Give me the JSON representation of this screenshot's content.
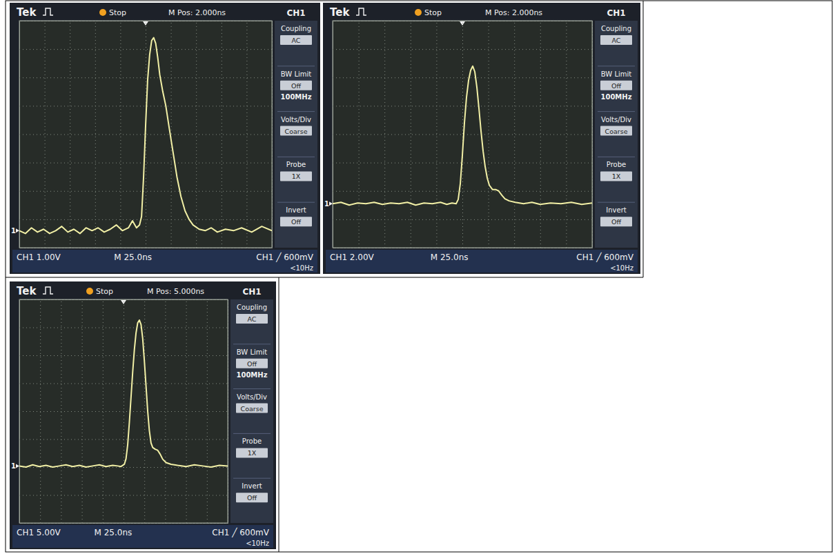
{
  "chart_data": [
    {
      "type": "line",
      "color": "#f2f0a6",
      "grid": true,
      "tick_labels": false,
      "annotations": [
        "Tek",
        "Stop",
        "M Pos: 2.000ns",
        "CH1",
        "Coupling",
        "AC",
        "BW Limit",
        "Off",
        "100MHz",
        "Volts/Div",
        "Coarse",
        "Probe",
        "1X",
        "Invert",
        "Off",
        "CH1 1.00V",
        "M 25.0ns",
        "CH1 ╱ 600mV",
        "<10Hz",
        "1"
      ],
      "xlim": [
        0,
        250
      ],
      "xticks": [
        0,
        25,
        50,
        75,
        100,
        125,
        150,
        175,
        200,
        225,
        250
      ],
      "ylim": [
        -0.5,
        7.5
      ],
      "yticks": [
        -0.5,
        0.5,
        1.5,
        2.5,
        3.5,
        4.5,
        5.5,
        6.5,
        7.5
      ],
      "x": [
        0,
        6,
        12,
        18,
        24,
        30,
        36,
        42,
        48,
        54,
        60,
        66,
        72,
        78,
        84,
        90,
        96,
        102,
        108,
        112,
        116,
        119,
        121,
        123,
        125,
        127,
        129,
        131,
        133,
        135,
        137,
        139,
        142,
        145,
        148,
        152,
        156,
        160,
        164,
        168,
        172,
        178,
        184,
        190,
        196,
        204,
        212,
        220,
        230,
        240,
        250
      ],
      "values": [
        0.1,
        0,
        0.2,
        0.05,
        0.15,
        0,
        0.1,
        0.25,
        0.05,
        0.15,
        0,
        0.2,
        0.1,
        0.2,
        0.05,
        0.15,
        0.3,
        0.1,
        0.2,
        0.45,
        0.2,
        0.3,
        0.6,
        2.0,
        3.8,
        5.4,
        6.3,
        6.8,
        6.9,
        6.7,
        6.2,
        5.6,
        5.0,
        4.5,
        3.8,
        2.9,
        2.0,
        1.3,
        0.8,
        0.5,
        0.3,
        0.15,
        0.1,
        0.2,
        0.05,
        0.15,
        0.1,
        0.2,
        0.05,
        0.25,
        0.1
      ]
    },
    {
      "type": "line",
      "color": "#f2f0a6",
      "grid": true,
      "tick_labels": false,
      "annotations": [
        "Tek",
        "Stop",
        "M Pos: 2.000ns",
        "CH1",
        "Coupling",
        "AC",
        "BW Limit",
        "Off",
        "100MHz",
        "Volts/Div",
        "Coarse",
        "Probe",
        "1X",
        "Invert",
        "Off",
        "CH1 2.00V",
        "M 25.0ns",
        "CH1 ╱ 600mV",
        "<10Hz",
        "1"
      ],
      "xlim": [
        0,
        250
      ],
      "xticks": [
        0,
        25,
        50,
        75,
        100,
        125,
        150,
        175,
        200,
        225,
        250
      ],
      "ylim": [
        -3,
        13
      ],
      "yticks": [
        -3,
        -1,
        1,
        3,
        5,
        7,
        9,
        11,
        13
      ],
      "x": [
        0,
        8,
        16,
        24,
        32,
        40,
        48,
        56,
        64,
        72,
        80,
        88,
        96,
        104,
        110,
        115,
        119,
        121,
        123,
        125,
        127,
        129,
        131,
        133,
        135,
        137,
        139,
        141,
        143,
        145,
        147,
        149,
        151,
        154,
        157,
        160,
        163,
        166,
        170,
        176,
        184,
        192,
        200,
        210,
        220,
        230,
        240,
        250
      ],
      "values": [
        0.1,
        0.2,
        0,
        0.15,
        0.1,
        0.2,
        0.05,
        0.15,
        0.1,
        0.2,
        0,
        0.15,
        0.1,
        0.2,
        0.05,
        0.15,
        0.1,
        0.4,
        1.5,
        3.5,
        5.8,
        7.6,
        8.8,
        9.5,
        9.8,
        9.4,
        8.3,
        6.8,
        5.2,
        3.8,
        2.7,
        1.9,
        1.4,
        1.1,
        1.1,
        1.0,
        0.7,
        0.45,
        0.3,
        0.2,
        0.1,
        0.2,
        0.05,
        0.15,
        0.1,
        0.2,
        0.05,
        0.15
      ]
    },
    {
      "type": "line",
      "color": "#f2f0a6",
      "grid": true,
      "tick_labels": false,
      "annotations": [
        "Tek",
        "Stop",
        "M Pos: 5.000ns",
        "CH1",
        "Coupling",
        "AC",
        "BW Limit",
        "Off",
        "100MHz",
        "Volts/Div",
        "Coarse",
        "Probe",
        "1X",
        "Invert",
        "Off",
        "CH1 5.00V",
        "M 25.0ns",
        "CH1 ╱ 600mV",
        "<10Hz",
        "1"
      ],
      "xlim": [
        0,
        250
      ],
      "xticks": [
        0,
        25,
        50,
        75,
        100,
        125,
        150,
        175,
        200,
        225,
        250
      ],
      "ylim": [
        -10,
        30
      ],
      "yticks": [
        -10,
        -5,
        0,
        5,
        10,
        15,
        20,
        25,
        30
      ],
      "x": [
        0,
        8,
        16,
        24,
        32,
        40,
        48,
        56,
        64,
        72,
        80,
        88,
        96,
        104,
        112,
        118,
        122,
        126,
        128,
        130,
        132,
        134,
        136,
        138,
        140,
        142,
        144,
        146,
        148,
        150,
        152,
        154,
        156,
        158,
        160,
        163,
        166,
        169,
        172,
        176,
        182,
        190,
        200,
        210,
        220,
        230,
        240,
        250
      ],
      "values": [
        0.2,
        0,
        0.4,
        0.1,
        0.3,
        0,
        0.2,
        0.4,
        0.1,
        0.3,
        0,
        0.2,
        0.4,
        0.1,
        0.3,
        0.2,
        0.1,
        0.5,
        1.5,
        4.0,
        8.0,
        12.5,
        17.0,
        21.0,
        24.0,
        25.8,
        26.3,
        25.5,
        23.0,
        19.0,
        14.5,
        10.0,
        6.5,
        4.3,
        3.5,
        3.2,
        3.0,
        2.3,
        1.4,
        0.8,
        0.5,
        0.3,
        0.1,
        0.4,
        0.2,
        0,
        0.3,
        0.2
      ]
    }
  ]
}
